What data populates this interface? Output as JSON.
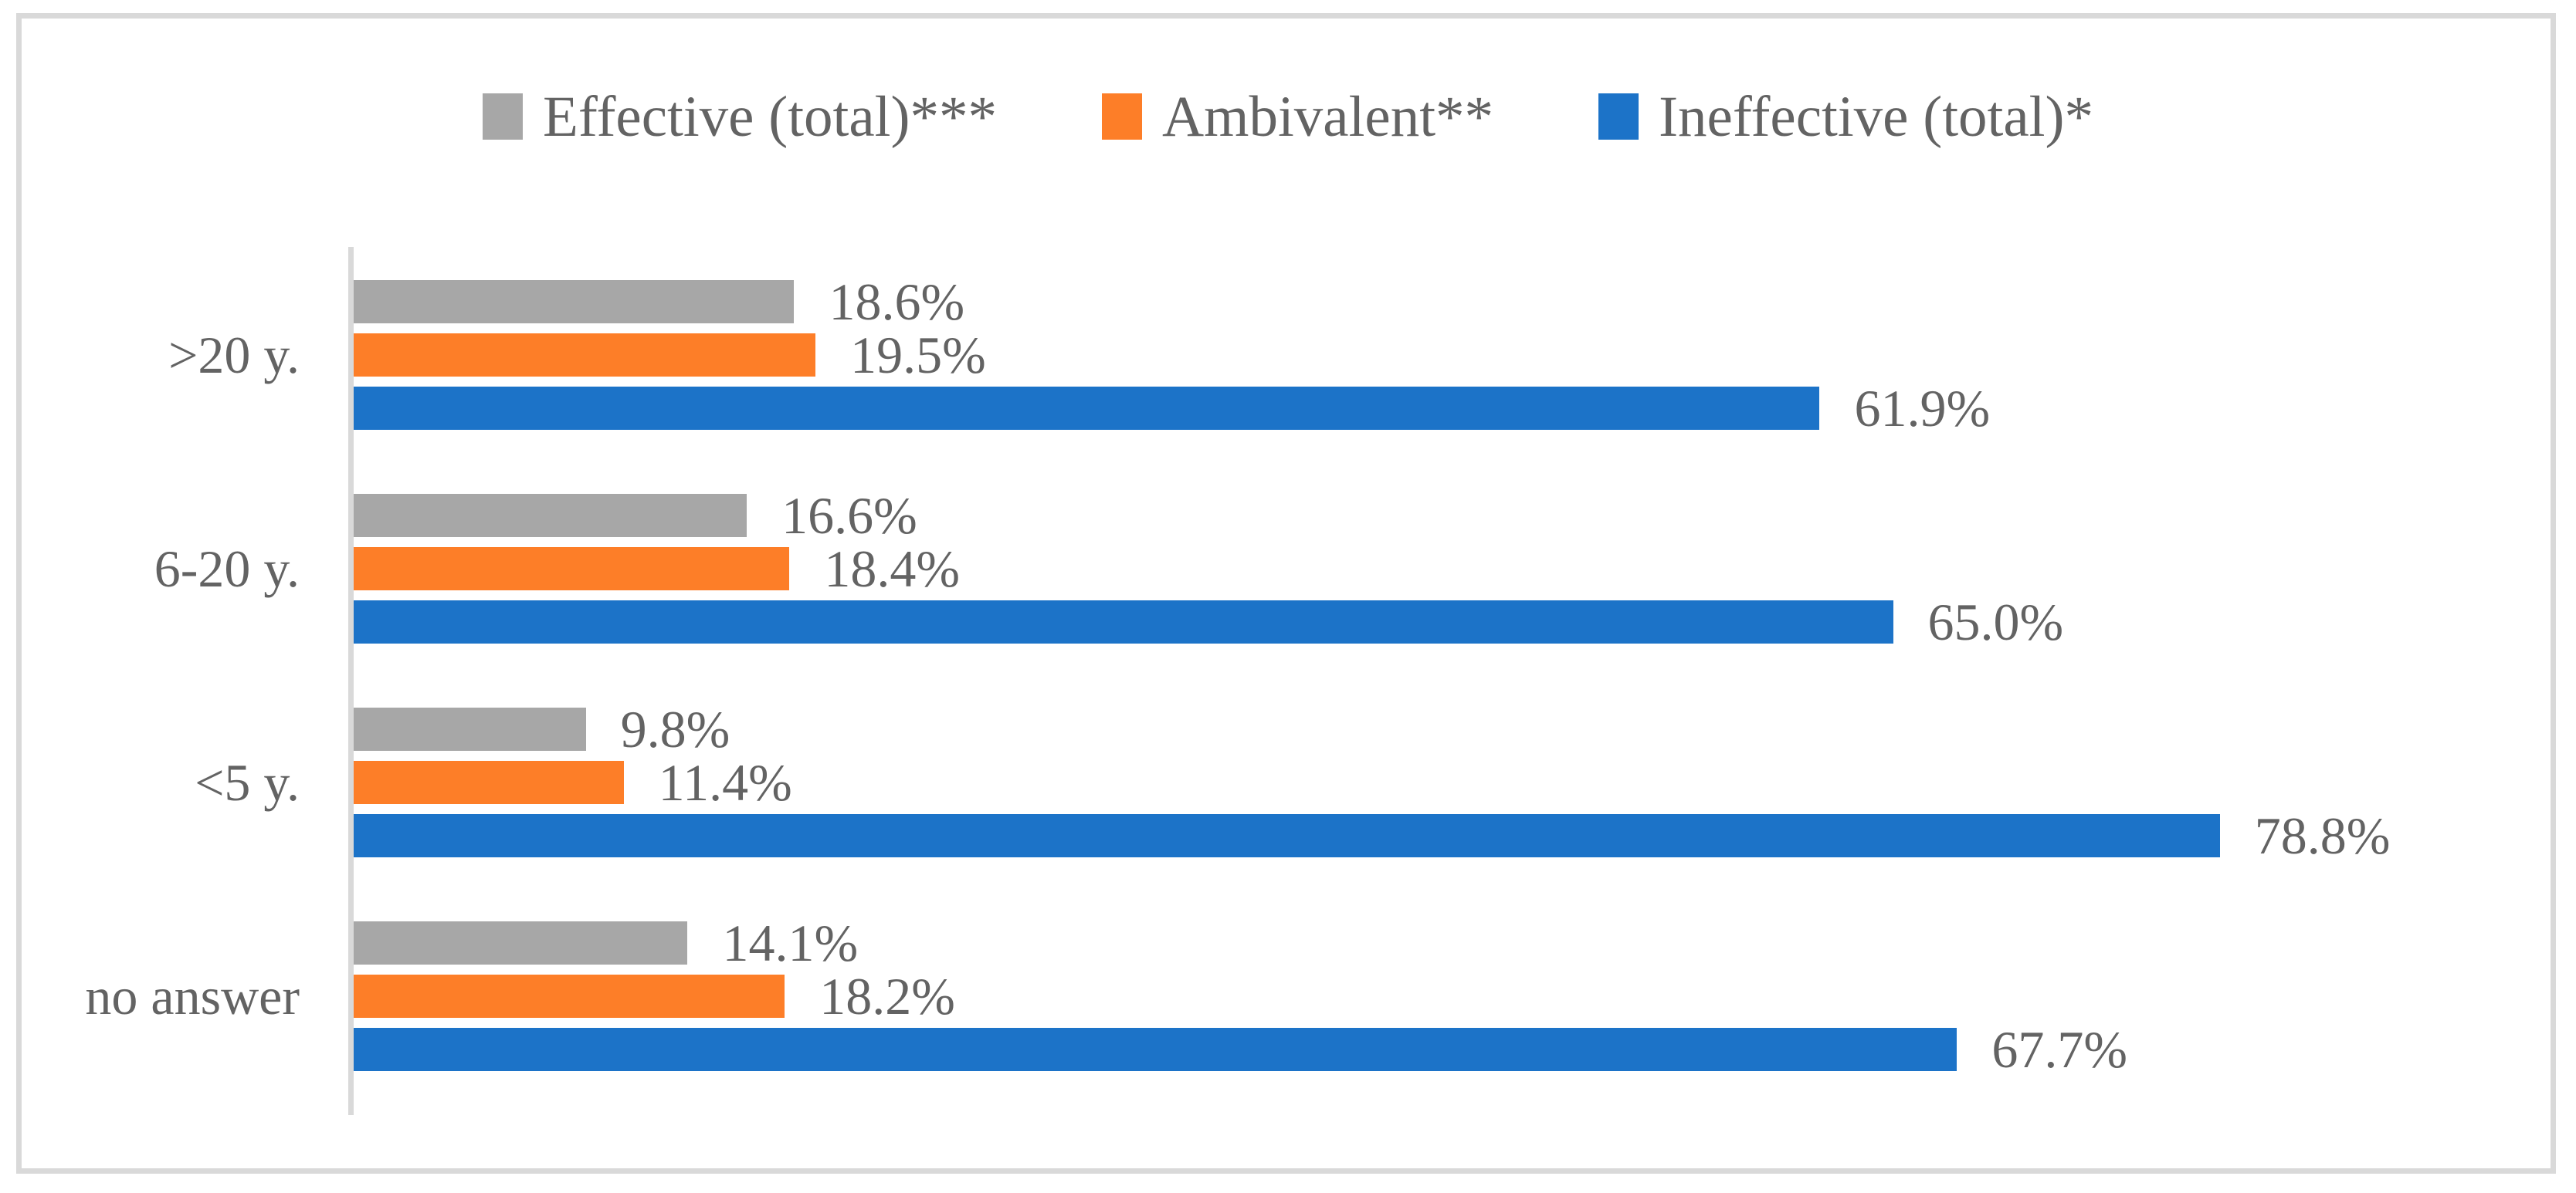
{
  "chart_data": {
    "type": "bar",
    "orientation": "horizontal",
    "title": "",
    "xlabel": "",
    "ylabel": "",
    "categories": [
      ">20 y.",
      "6-20 y.",
      "<5 y.",
      "no answer"
    ],
    "series": [
      {
        "name": "Effective (total)***",
        "color": "#A7A7A7",
        "values": [
          18.6,
          16.6,
          9.8,
          14.1
        ]
      },
      {
        "name": "Ambivalent**",
        "color": "#FD7E28",
        "values": [
          19.5,
          18.4,
          11.4,
          18.2
        ]
      },
      {
        "name": "Ineffective (total)*",
        "color": "#1C73C8",
        "values": [
          61.9,
          65.0,
          78.8,
          67.7
        ]
      }
    ],
    "value_label_format": "one-decimal-percent",
    "xlim": [
      0,
      92.6
    ],
    "grid": false,
    "x_axis_ticks_visible": false,
    "legend_position": "top-center",
    "bar_order_in_group_top_to_bottom": [
      "Effective (total)***",
      "Ambivalent**",
      "Ineffective (total)*"
    ],
    "axis_line_color": "#D9D9D9",
    "frame_border_color": "#D9D9D9",
    "label_text_color": "#636363",
    "background_color": "#FFFFFF"
  }
}
